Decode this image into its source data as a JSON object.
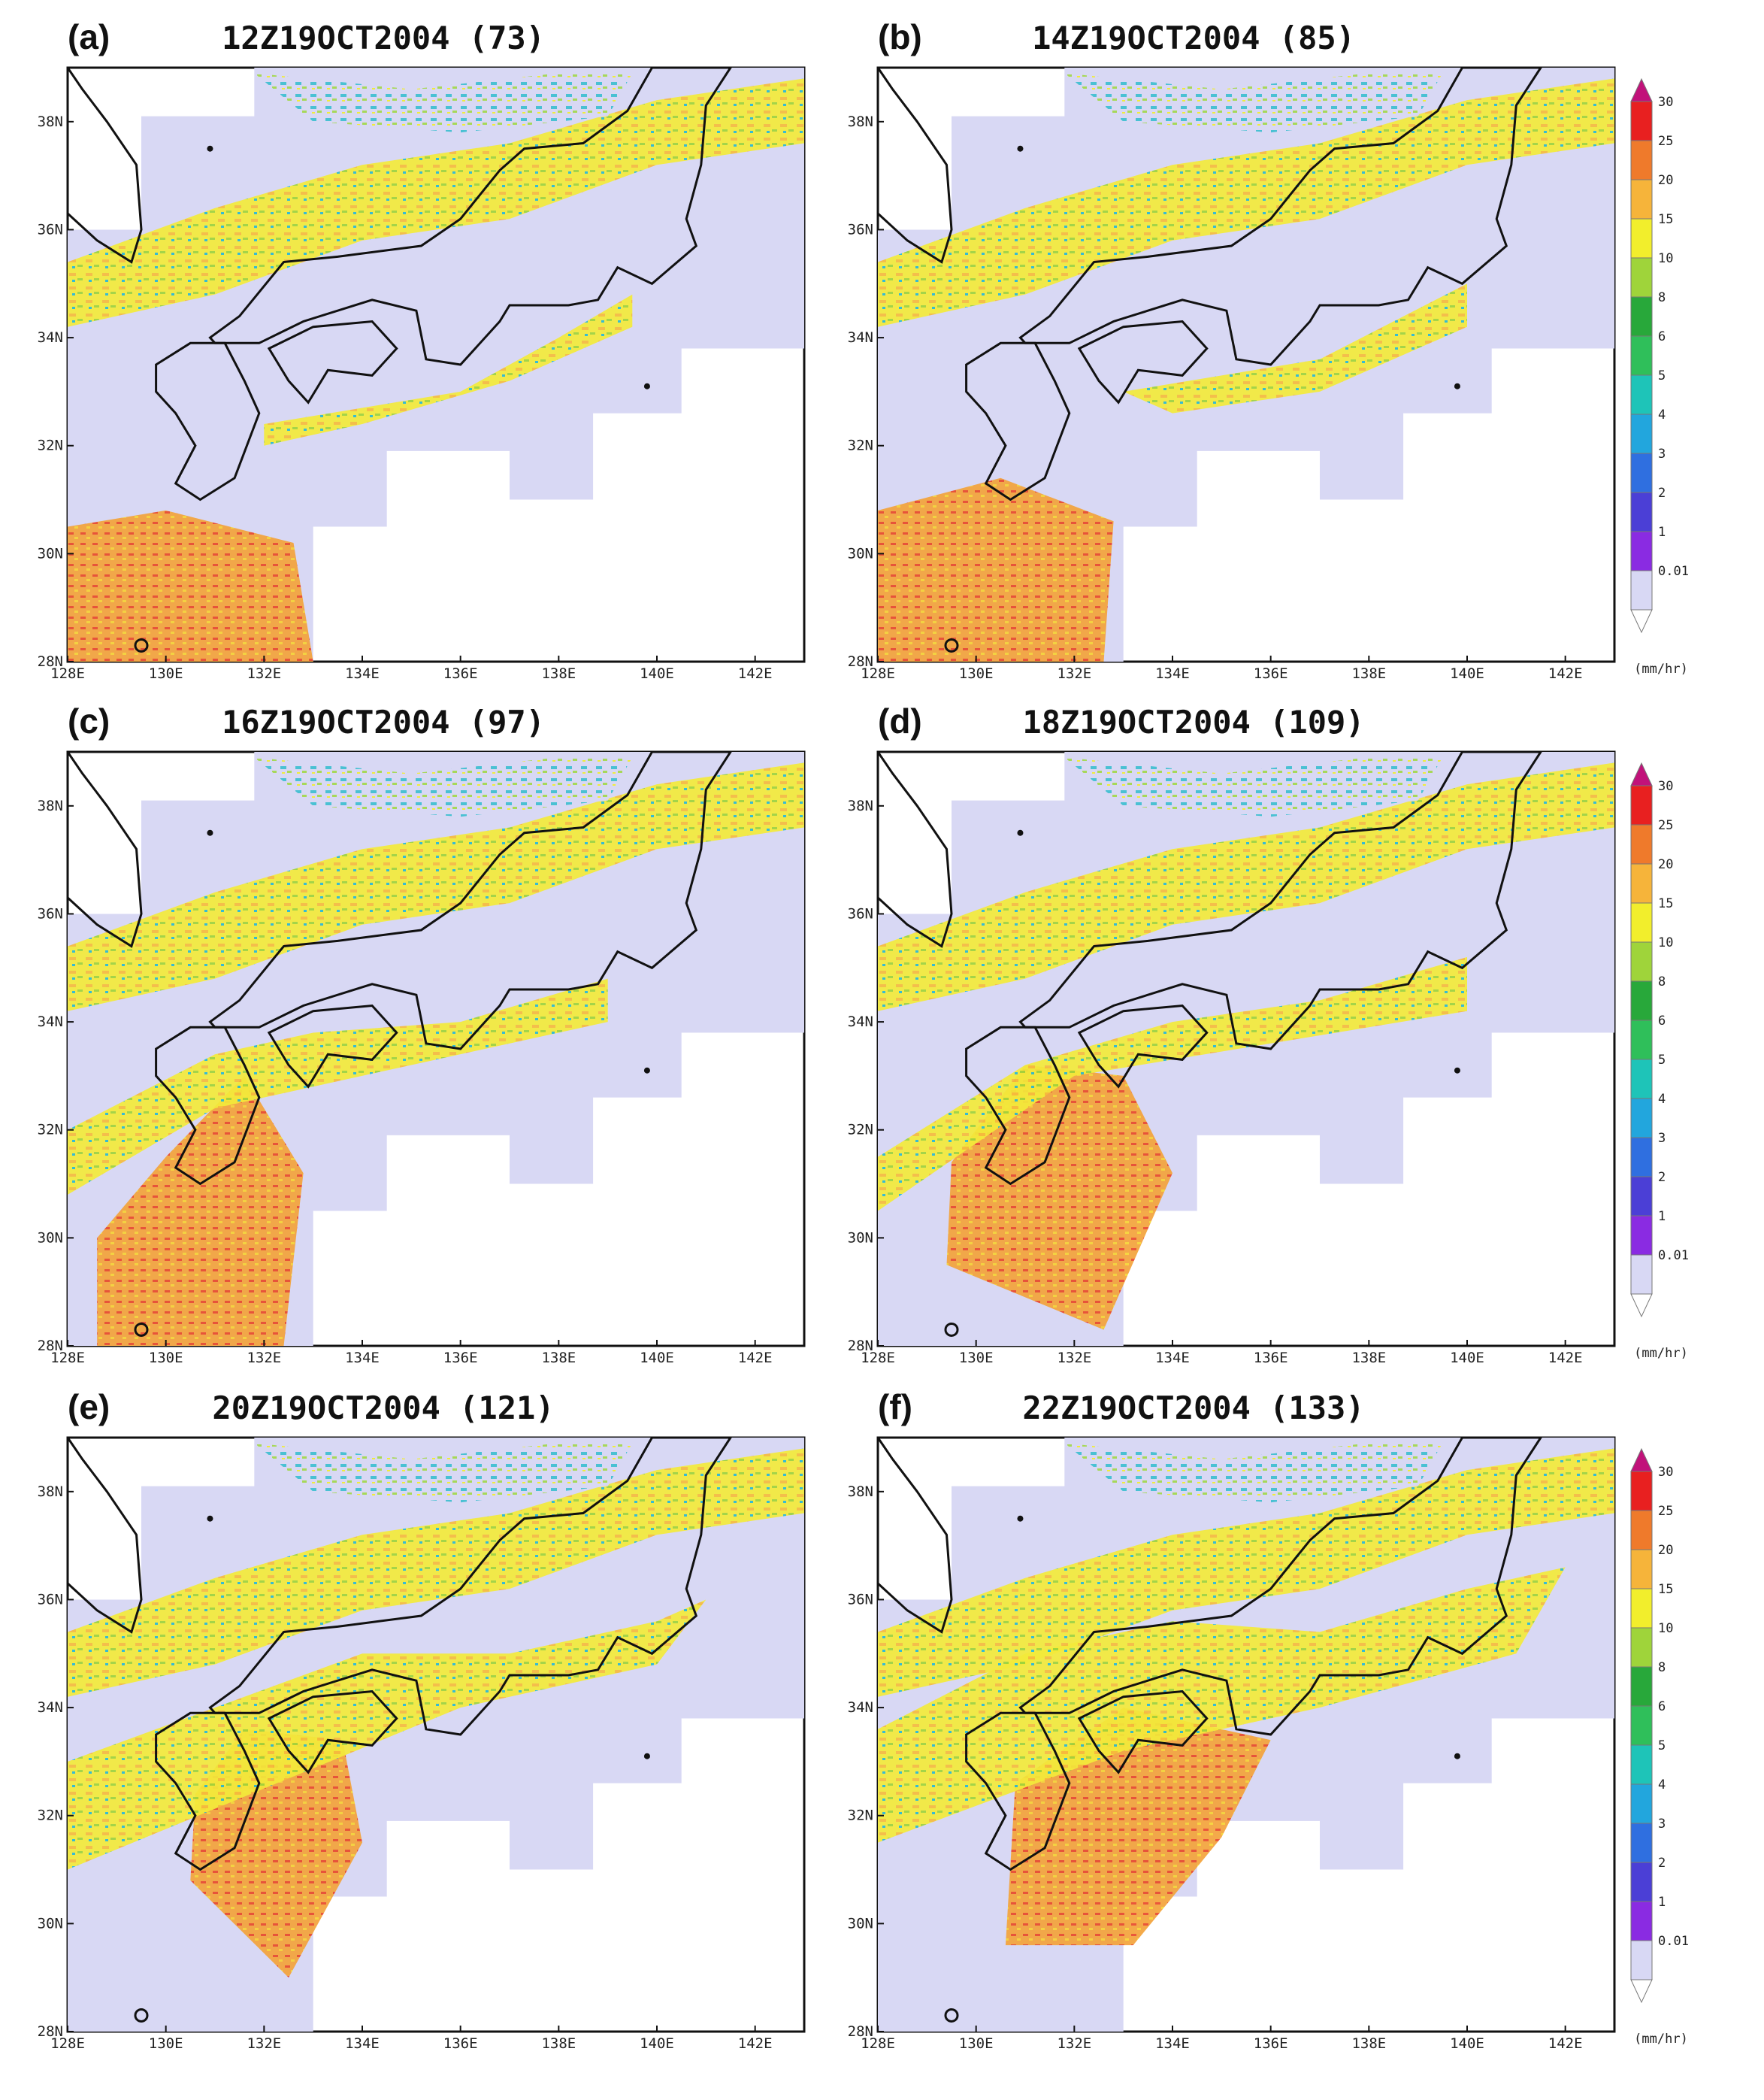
{
  "panels": [
    {
      "label": "(a)",
      "title": "12Z19OCT2004  (73)"
    },
    {
      "label": "(b)",
      "title": "14Z19OCT2004  (85)"
    },
    {
      "label": "(c)",
      "title": "16Z19OCT2004  (97)"
    },
    {
      "label": "(d)",
      "title": "18Z19OCT2004  (109)"
    },
    {
      "label": "(e)",
      "title": "20Z19OCT2004  (121)"
    },
    {
      "label": "(f)",
      "title": "22Z19OCT2004  (133)"
    }
  ],
  "axes": {
    "lon_ticks": [
      "128E",
      "130E",
      "132E",
      "134E",
      "136E",
      "138E",
      "140E",
      "142E"
    ],
    "lat_ticks": [
      "28N",
      "30N",
      "32N",
      "34N",
      "36N",
      "38N"
    ],
    "lon_range": [
      128,
      143
    ],
    "lat_range": [
      28,
      39
    ]
  },
  "colorbar": {
    "unit": "(mm/hr)",
    "levels": [
      "0.01",
      "1",
      "2",
      "3",
      "4",
      "5",
      "6",
      "8",
      "10",
      "15",
      "20",
      "25",
      "30"
    ],
    "colors": [
      "#d8d8f4",
      "#8a2be2",
      "#4b3fd6",
      "#2f6fe0",
      "#22a6dd",
      "#1ec4b8",
      "#2fbf5a",
      "#28a83a",
      "#9fd43a",
      "#f2ee2c",
      "#f6b43a",
      "#ef7a2b",
      "#e82020",
      "#c1127a"
    ]
  }
}
